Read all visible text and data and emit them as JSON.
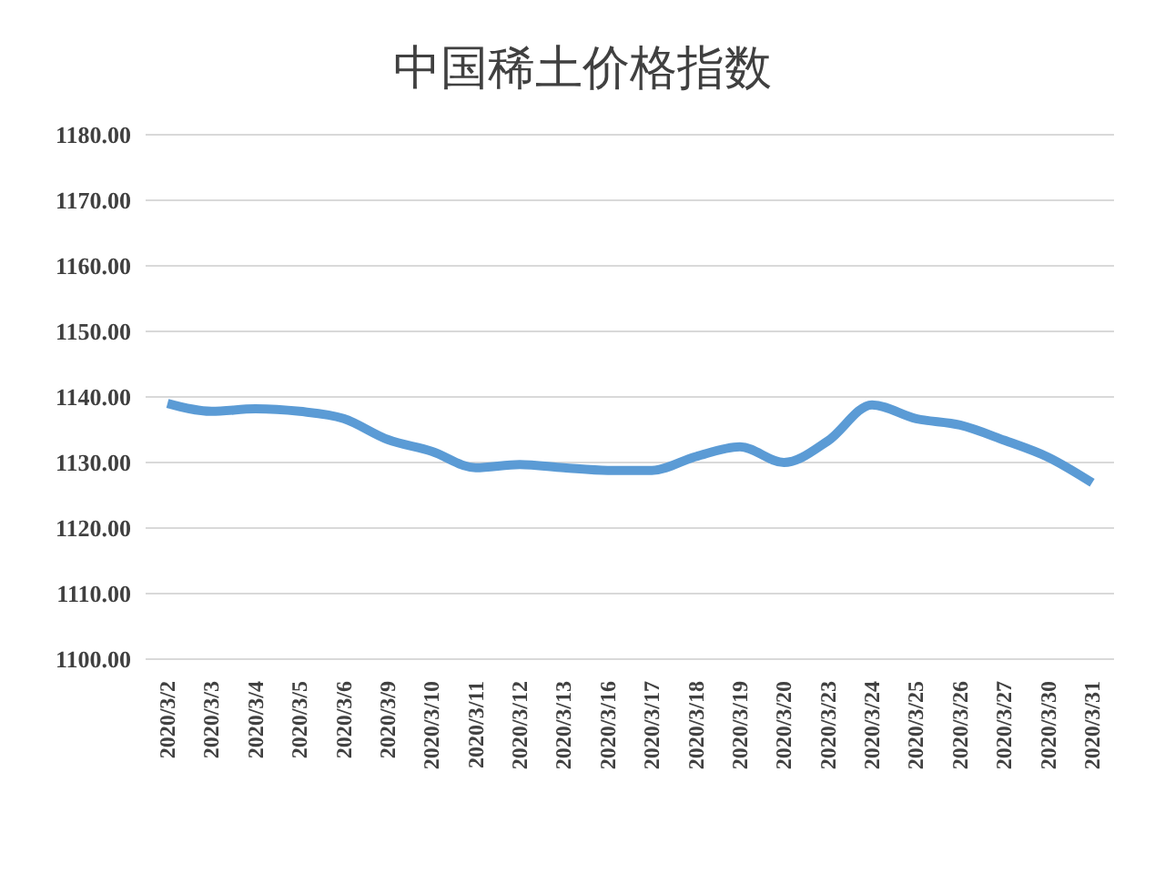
{
  "chart_data": {
    "type": "line",
    "title": "中国稀土价格指数",
    "categories": [
      "2020/3/2",
      "2020/3/3",
      "2020/3/4",
      "2020/3/5",
      "2020/3/6",
      "2020/3/9",
      "2020/3/10",
      "2020/3/11",
      "2020/3/12",
      "2020/3/13",
      "2020/3/16",
      "2020/3/17",
      "2020/3/18",
      "2020/3/19",
      "2020/3/20",
      "2020/3/23",
      "2020/3/24",
      "2020/3/25",
      "2020/3/26",
      "2020/3/27",
      "2020/3/30",
      "2020/3/31"
    ],
    "series": [
      {
        "color": "#5b9bd5",
        "values": [
          1139,
          1137.8,
          1138.2,
          1137.8,
          1136.7,
          1133.5,
          1131.7,
          1129.2,
          1129.7,
          1129.2,
          1128.8,
          1128.8,
          1130.9,
          1132.4,
          1130,
          1133.3,
          1138.8,
          1136.7,
          1135.7,
          1133.4,
          1130.8,
          1126.9
        ]
      }
    ],
    "ylim": [
      1100,
      1180
    ],
    "yticks": [
      {
        "value": 1100,
        "label": "1100.00"
      },
      {
        "value": 1110,
        "label": "1110.00"
      },
      {
        "value": 1120,
        "label": "1120.00"
      },
      {
        "value": 1130,
        "label": "1130.00"
      },
      {
        "value": 1140,
        "label": "1140.00"
      },
      {
        "value": 1150,
        "label": "1150.00"
      },
      {
        "value": 1160,
        "label": "1160.00"
      },
      {
        "value": 1170,
        "label": "1170.00"
      },
      {
        "value": 1180,
        "label": "1180.00"
      }
    ],
    "grid": "y",
    "legend": false,
    "marker": "none",
    "line_style": "solid"
  }
}
